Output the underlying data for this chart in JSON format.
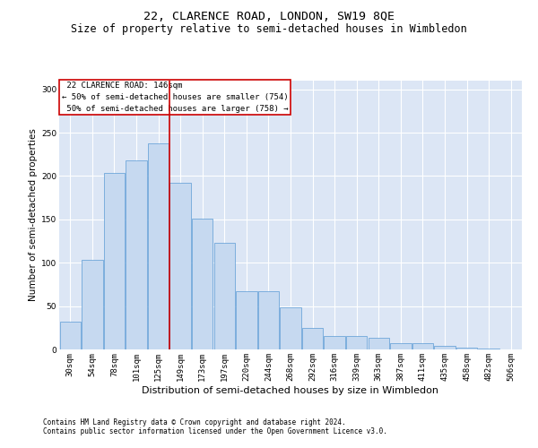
{
  "title": "22, CLARENCE ROAD, LONDON, SW19 8QE",
  "subtitle": "Size of property relative to semi-detached houses in Wimbledon",
  "xlabel": "Distribution of semi-detached houses by size in Wimbledon",
  "ylabel": "Number of semi-detached properties",
  "footnote1": "Contains HM Land Registry data © Crown copyright and database right 2024.",
  "footnote2": "Contains public sector information licensed under the Open Government Licence v3.0.",
  "categories": [
    "30sqm",
    "54sqm",
    "78sqm",
    "101sqm",
    "125sqm",
    "149sqm",
    "173sqm",
    "197sqm",
    "220sqm",
    "244sqm",
    "268sqm",
    "292sqm",
    "316sqm",
    "339sqm",
    "363sqm",
    "387sqm",
    "411sqm",
    "435sqm",
    "458sqm",
    "482sqm",
    "506sqm"
  ],
  "values": [
    32,
    103,
    204,
    218,
    238,
    192,
    151,
    123,
    67,
    67,
    49,
    25,
    16,
    16,
    13,
    7,
    7,
    4,
    2,
    1,
    0
  ],
  "bar_color": "#c6d9f0",
  "bar_edge_color": "#5b9bd5",
  "property_line_x": 4.5,
  "property_label": "22 CLARENCE ROAD: 146sqm",
  "smaller_count": 754,
  "larger_count": 758,
  "annotation_box_color": "#cc0000",
  "ylim": [
    0,
    310
  ],
  "yticks": [
    0,
    50,
    100,
    150,
    200,
    250,
    300
  ],
  "background_color": "#ffffff",
  "plot_bg_color": "#dce6f5",
  "grid_color": "#ffffff",
  "title_fontsize": 9.5,
  "subtitle_fontsize": 8.5,
  "xlabel_fontsize": 8,
  "ylabel_fontsize": 7.5,
  "tick_fontsize": 6.5,
  "annotation_fontsize": 6.5,
  "footnote_fontsize": 5.5
}
